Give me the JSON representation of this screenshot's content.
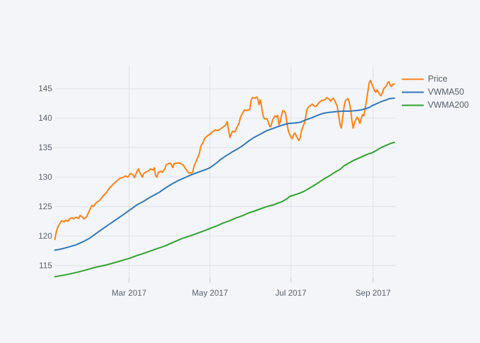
{
  "chart": {
    "background_color": "#f3f5f9",
    "grid_color": "#e0e4ea",
    "tick_mark_color": "#c9cfd8",
    "text_color": "#575f6b",
    "x_tick_labels": [
      "Mar 2017",
      "May 2017",
      "Jul 2017",
      "Sep 2017"
    ],
    "y_tick_labels": [
      "115",
      "120",
      "125",
      "130",
      "135",
      "140",
      "145"
    ]
  },
  "legend": {
    "items": [
      {
        "label": "Price",
        "color": "#ff7f0e"
      },
      {
        "label": "VWMA50",
        "color": "#2f74b8"
      },
      {
        "label": "VWMA200",
        "color": "#2ca02c"
      }
    ]
  },
  "chart_data": {
    "type": "line",
    "title": "",
    "xlabel": "",
    "ylabel": "",
    "grid": true,
    "legend_position": "top-right",
    "x_unit": "days since 2017-01-04",
    "x_range_days": [
      0,
      257
    ],
    "ylim": [
      112.9,
      149.0
    ],
    "x_axis_ticks": [
      {
        "day": 56,
        "label": "Mar 2017"
      },
      {
        "day": 117,
        "label": "May 2017"
      },
      {
        "day": 178,
        "label": "Jul 2017"
      },
      {
        "day": 240,
        "label": "Sep 2017"
      }
    ],
    "y_axis_ticks": [
      115,
      120,
      125,
      130,
      135,
      140,
      145
    ],
    "series": [
      {
        "name": "Price",
        "color": "#ff7f0e",
        "points": [
          [
            0,
            119.4
          ],
          [
            1,
            120.6
          ],
          [
            2,
            121.4
          ],
          [
            4,
            122.2
          ],
          [
            5,
            122.6
          ],
          [
            7,
            122.4
          ],
          [
            8,
            122.7
          ],
          [
            10,
            122.5
          ],
          [
            11,
            122.9
          ],
          [
            13,
            123.1
          ],
          [
            14,
            122.9
          ],
          [
            16,
            123.2
          ],
          [
            18,
            123.0
          ],
          [
            19,
            123.5
          ],
          [
            21,
            123.2
          ],
          [
            22,
            122.9
          ],
          [
            24,
            123.3
          ],
          [
            26,
            124.3
          ],
          [
            28,
            125.2
          ],
          [
            29,
            125.0
          ],
          [
            31,
            125.6
          ],
          [
            34,
            126.1
          ],
          [
            36,
            126.7
          ],
          [
            39,
            127.4
          ],
          [
            41,
            128.1
          ],
          [
            44,
            128.8
          ],
          [
            47,
            129.4
          ],
          [
            49,
            129.8
          ],
          [
            52,
            130.0
          ],
          [
            53,
            130.2
          ],
          [
            55,
            130.0
          ],
          [
            57,
            130.6
          ],
          [
            59,
            130.4
          ],
          [
            60,
            129.9
          ],
          [
            62,
            131.0
          ],
          [
            63,
            131.4
          ],
          [
            64,
            130.8
          ],
          [
            66,
            130.0
          ],
          [
            67,
            130.6
          ],
          [
            69,
            130.9
          ],
          [
            71,
            131.1
          ],
          [
            72,
            131.4
          ],
          [
            74,
            131.2
          ],
          [
            75,
            131.6
          ],
          [
            76,
            130.2
          ],
          [
            77,
            130.0
          ],
          [
            78,
            130.8
          ],
          [
            80,
            131.0
          ],
          [
            81,
            130.8
          ],
          [
            83,
            131.4
          ],
          [
            84,
            132.1
          ],
          [
            86,
            132.3
          ],
          [
            87,
            132.4
          ],
          [
            89,
            131.6
          ],
          [
            90,
            132.3
          ],
          [
            93,
            132.4
          ],
          [
            95,
            132.3
          ],
          [
            97,
            132.0
          ],
          [
            98,
            131.6
          ],
          [
            100,
            131.0
          ],
          [
            101,
            130.7
          ],
          [
            103,
            130.7
          ],
          [
            104,
            130.9
          ],
          [
            105,
            131.9
          ],
          [
            107,
            132.9
          ],
          [
            109,
            134.0
          ],
          [
            110,
            135.2
          ],
          [
            112,
            136.0
          ],
          [
            113,
            136.6
          ],
          [
            115,
            137.0
          ],
          [
            117,
            137.3
          ],
          [
            119,
            137.7
          ],
          [
            121,
            138.0
          ],
          [
            123,
            137.9
          ],
          [
            125,
            138.2
          ],
          [
            127,
            138.5
          ],
          [
            129,
            138.9
          ],
          [
            130,
            139.4
          ],
          [
            131,
            138.0
          ],
          [
            132,
            136.7
          ],
          [
            133,
            137.3
          ],
          [
            134,
            137.8
          ],
          [
            136,
            137.7
          ],
          [
            137,
            138.3
          ],
          [
            139,
            139.2
          ],
          [
            140,
            140.2
          ],
          [
            142,
            141.0
          ],
          [
            143,
            141.4
          ],
          [
            145,
            141.3
          ],
          [
            146,
            141.4
          ],
          [
            147,
            141.5
          ],
          [
            148,
            143.0
          ],
          [
            149,
            143.5
          ],
          [
            151,
            143.4
          ],
          [
            152,
            143.6
          ],
          [
            153,
            143.3
          ],
          [
            154,
            142.3
          ],
          [
            155,
            143.1
          ],
          [
            156,
            141.8
          ],
          [
            157,
            140.5
          ],
          [
            158,
            139.9
          ],
          [
            160,
            139.9
          ],
          [
            161,
            139.3
          ],
          [
            162,
            138.6
          ],
          [
            163,
            138.6
          ],
          [
            164,
            139.6
          ],
          [
            165,
            140.0
          ],
          [
            166,
            140.4
          ],
          [
            167,
            140.2
          ],
          [
            168,
            140.5
          ],
          [
            169,
            138.9
          ],
          [
            170,
            139.4
          ],
          [
            171,
            140.6
          ],
          [
            172,
            141.3
          ],
          [
            173,
            141.2
          ],
          [
            174,
            140.8
          ],
          [
            175,
            139.2
          ],
          [
            176,
            137.9
          ],
          [
            177,
            137.3
          ],
          [
            178,
            136.8
          ],
          [
            179,
            136.5
          ],
          [
            180,
            137.2
          ],
          [
            181,
            137.5
          ],
          [
            183,
            136.6
          ],
          [
            184,
            136.2
          ],
          [
            185,
            136.7
          ],
          [
            186,
            137.9
          ],
          [
            188,
            139.1
          ],
          [
            189,
            140.0
          ],
          [
            190,
            141.4
          ],
          [
            191,
            141.8
          ],
          [
            193,
            142.2
          ],
          [
            194,
            142.4
          ],
          [
            196,
            142.0
          ],
          [
            197,
            142.0
          ],
          [
            199,
            142.6
          ],
          [
            201,
            143.0
          ],
          [
            202,
            143.0
          ],
          [
            204,
            143.2
          ],
          [
            205,
            143.5
          ],
          [
            207,
            143.2
          ],
          [
            208,
            142.9
          ],
          [
            209,
            143.2
          ],
          [
            210,
            143.4
          ],
          [
            211,
            143.0
          ],
          [
            213,
            142.0
          ],
          [
            214,
            140.5
          ],
          [
            215,
            139.0
          ],
          [
            216,
            138.3
          ],
          [
            217,
            140.0
          ],
          [
            218,
            141.8
          ],
          [
            219,
            142.9
          ],
          [
            220,
            143.2
          ],
          [
            221,
            143.3
          ],
          [
            222,
            142.8
          ],
          [
            223,
            141.5
          ],
          [
            224,
            139.6
          ],
          [
            225,
            138.3
          ],
          [
            226,
            139.3
          ],
          [
            228,
            140.2
          ],
          [
            229,
            139.8
          ],
          [
            230,
            139.1
          ],
          [
            231,
            139.9
          ],
          [
            232,
            140.6
          ],
          [
            233,
            140.4
          ],
          [
            234,
            141.6
          ],
          [
            235,
            143.0
          ],
          [
            236,
            144.5
          ],
          [
            237,
            146.0
          ],
          [
            238,
            146.4
          ],
          [
            239,
            145.8
          ],
          [
            240,
            145.3
          ],
          [
            241,
            144.7
          ],
          [
            242,
            144.4
          ],
          [
            243,
            144.8
          ],
          [
            244,
            144.4
          ],
          [
            245,
            144.0
          ],
          [
            246,
            143.8
          ],
          [
            247,
            144.3
          ],
          [
            248,
            145.0
          ],
          [
            250,
            145.5
          ],
          [
            251,
            146.0
          ],
          [
            252,
            146.2
          ],
          [
            253,
            145.5
          ],
          [
            254,
            145.4
          ],
          [
            255,
            145.8
          ],
          [
            256,
            145.8
          ]
        ]
      },
      {
        "name": "VWMA50",
        "color": "#2f74b8",
        "points": [
          [
            0,
            117.6
          ],
          [
            5,
            117.8
          ],
          [
            10,
            118.1
          ],
          [
            16,
            118.5
          ],
          [
            21,
            119.0
          ],
          [
            26,
            119.6
          ],
          [
            31,
            120.4
          ],
          [
            36,
            121.2
          ],
          [
            41,
            122.0
          ],
          [
            47,
            122.9
          ],
          [
            52,
            123.7
          ],
          [
            57,
            124.5
          ],
          [
            62,
            125.3
          ],
          [
            67,
            125.9
          ],
          [
            72,
            126.6
          ],
          [
            78,
            127.3
          ],
          [
            83,
            128.1
          ],
          [
            88,
            128.8
          ],
          [
            93,
            129.4
          ],
          [
            98,
            129.9
          ],
          [
            103,
            130.4
          ],
          [
            109,
            130.9
          ],
          [
            114,
            131.3
          ],
          [
            117,
            131.6
          ],
          [
            122,
            132.4
          ],
          [
            125,
            133.0
          ],
          [
            129,
            133.6
          ],
          [
            134,
            134.3
          ],
          [
            138,
            134.8
          ],
          [
            142,
            135.4
          ],
          [
            146,
            136.1
          ],
          [
            150,
            136.7
          ],
          [
            155,
            137.3
          ],
          [
            160,
            137.9
          ],
          [
            165,
            138.3
          ],
          [
            171,
            138.8
          ],
          [
            176,
            139.1
          ],
          [
            181,
            139.2
          ],
          [
            185,
            139.3
          ],
          [
            189,
            139.7
          ],
          [
            193,
            140.0
          ],
          [
            197,
            140.4
          ],
          [
            202,
            140.8
          ],
          [
            207,
            141.0
          ],
          [
            212,
            141.1
          ],
          [
            217,
            141.2
          ],
          [
            222,
            141.2
          ],
          [
            228,
            141.3
          ],
          [
            231,
            141.4
          ],
          [
            234,
            141.6
          ],
          [
            237,
            141.8
          ],
          [
            239,
            142.1
          ],
          [
            242,
            142.4
          ],
          [
            245,
            142.7
          ],
          [
            247,
            142.9
          ],
          [
            250,
            143.1
          ],
          [
            252,
            143.3
          ],
          [
            256,
            143.4
          ]
        ]
      },
      {
        "name": "VWMA200",
        "color": "#2ca02c",
        "points": [
          [
            0,
            113.1
          ],
          [
            8,
            113.4
          ],
          [
            16,
            113.8
          ],
          [
            23,
            114.2
          ],
          [
            31,
            114.7
          ],
          [
            39,
            115.1
          ],
          [
            47,
            115.6
          ],
          [
            56,
            116.2
          ],
          [
            62,
            116.7
          ],
          [
            69,
            117.2
          ],
          [
            75,
            117.7
          ],
          [
            83,
            118.3
          ],
          [
            88,
            118.8
          ],
          [
            92,
            119.2
          ],
          [
            95,
            119.5
          ],
          [
            99,
            119.8
          ],
          [
            103,
            120.1
          ],
          [
            109,
            120.6
          ],
          [
            114,
            121.0
          ],
          [
            117,
            121.3
          ],
          [
            122,
            121.7
          ],
          [
            127,
            122.2
          ],
          [
            132,
            122.6
          ],
          [
            137,
            123.1
          ],
          [
            141,
            123.4
          ],
          [
            146,
            123.9
          ],
          [
            150,
            124.2
          ],
          [
            155,
            124.6
          ],
          [
            160,
            125.0
          ],
          [
            165,
            125.3
          ],
          [
            171,
            125.8
          ],
          [
            175,
            126.3
          ],
          [
            177,
            126.7
          ],
          [
            181,
            127.0
          ],
          [
            185,
            127.3
          ],
          [
            188,
            127.6
          ],
          [
            191,
            128.0
          ],
          [
            195,
            128.5
          ],
          [
            199,
            129.1
          ],
          [
            203,
            129.7
          ],
          [
            207,
            130.2
          ],
          [
            211,
            130.8
          ],
          [
            215,
            131.3
          ],
          [
            218,
            131.9
          ],
          [
            222,
            132.4
          ],
          [
            225,
            132.8
          ],
          [
            229,
            133.2
          ],
          [
            233,
            133.6
          ],
          [
            236,
            133.9
          ],
          [
            239,
            134.1
          ],
          [
            243,
            134.6
          ],
          [
            246,
            135.0
          ],
          [
            250,
            135.4
          ],
          [
            253,
            135.7
          ],
          [
            256,
            135.9
          ]
        ]
      }
    ]
  }
}
